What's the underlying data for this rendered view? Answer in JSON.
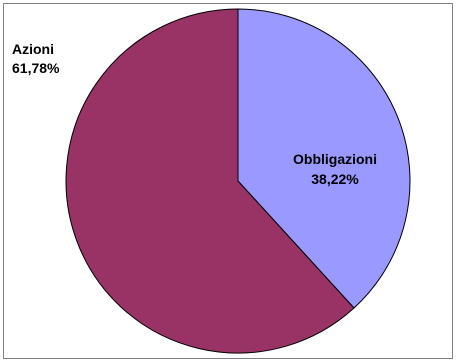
{
  "chart_data": {
    "type": "pie",
    "slices": [
      {
        "label": "Obbligazioni",
        "value_label": "38,22%",
        "value": 38.22,
        "color": "#9999ff"
      },
      {
        "label": "Azioni",
        "value_label": "61,78%",
        "value": 61.78,
        "color": "#993366"
      }
    ],
    "start": "top",
    "direction": "clockwise",
    "outline_color": "#000000"
  }
}
